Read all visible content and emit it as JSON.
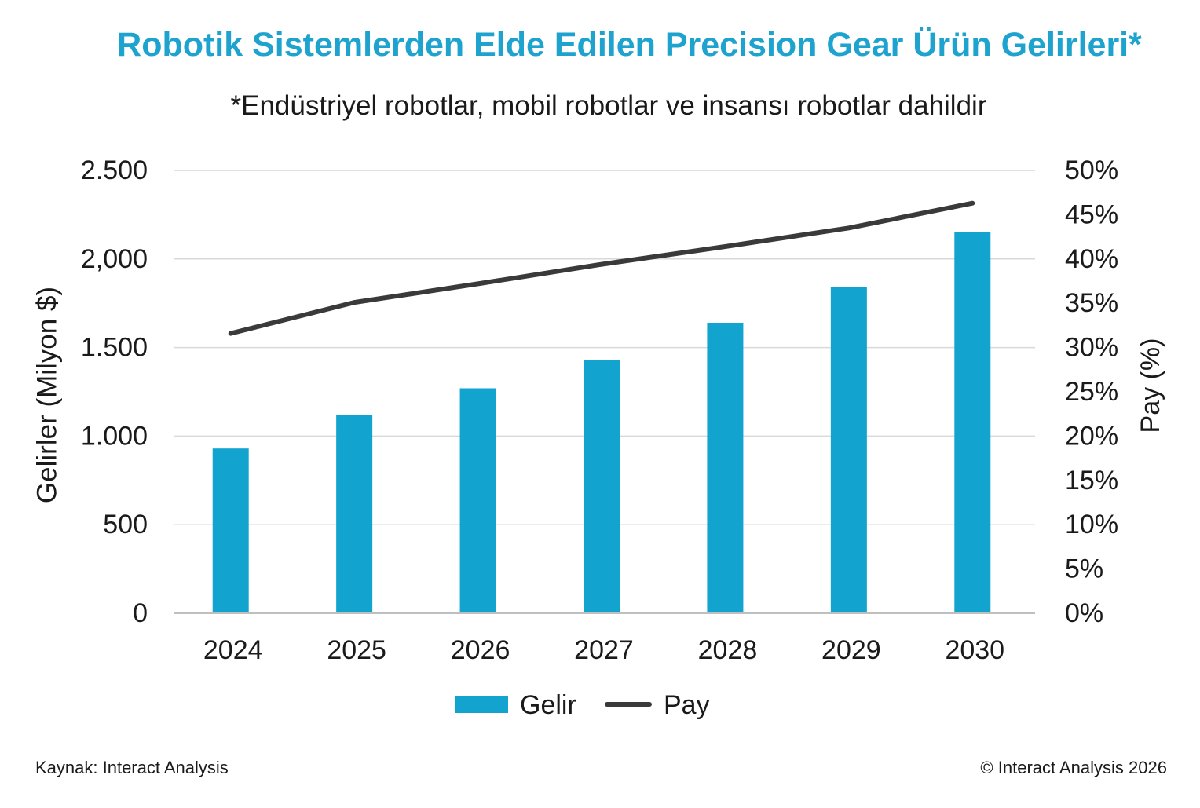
{
  "colors": {
    "title": "#1ea3cf",
    "text": "#1a1a1a",
    "bar": "#12a4cf",
    "line": "#3a3a3a",
    "grid": "#d9d9d9",
    "axis": "#bfbfbf",
    "background": "#ffffff"
  },
  "chart_data": {
    "type": "bar",
    "title": "Robotik Sistemlerden Elde Edilen Precision Gear Ürün Gelirleri*",
    "subtitle": "*Endüstriyel robotlar, mobil robotlar ve insansı robotlar dahildir",
    "categories": [
      "2024",
      "2025",
      "2026",
      "2027",
      "2028",
      "2029",
      "2030"
    ],
    "series": [
      {
        "name": "Gelir",
        "type": "bar",
        "axis": "left",
        "values": [
          930,
          1120,
          1270,
          1430,
          1640,
          1840,
          2150
        ]
      },
      {
        "name": "Pay",
        "type": "line",
        "axis": "right",
        "values": [
          31.6,
          35.1,
          37.2,
          39.4,
          41.4,
          43.5,
          46.3
        ]
      }
    ],
    "ylabel": "Gelirler (Milyon $)",
    "y2label": "Pay (%)",
    "ylim": [
      0,
      2500
    ],
    "y2lim": [
      0,
      50
    ],
    "yticks": [
      {
        "value": 0,
        "label": "0"
      },
      {
        "value": 500,
        "label": "500"
      },
      {
        "value": 1000,
        "label": "1.000"
      },
      {
        "value": 1500,
        "label": "1.500"
      },
      {
        "value": 2000,
        "label": "2,000"
      },
      {
        "value": 2500,
        "label": "2.500"
      }
    ],
    "y2ticks": [
      {
        "value": 0,
        "label": "0%"
      },
      {
        "value": 5,
        "label": "5%"
      },
      {
        "value": 10,
        "label": "10%"
      },
      {
        "value": 15,
        "label": "15%"
      },
      {
        "value": 20,
        "label": "20%"
      },
      {
        "value": 25,
        "label": "25%"
      },
      {
        "value": 30,
        "label": "30%"
      },
      {
        "value": 35,
        "label": "35%"
      },
      {
        "value": 40,
        "label": "40%"
      },
      {
        "value": 45,
        "label": "45%"
      },
      {
        "value": 50,
        "label": "50%"
      }
    ],
    "grid": true,
    "legend": "bottom"
  },
  "footer": {
    "source": "Kaynak: Interact Analysis",
    "copyright": "© Interact Analysis 2026"
  }
}
